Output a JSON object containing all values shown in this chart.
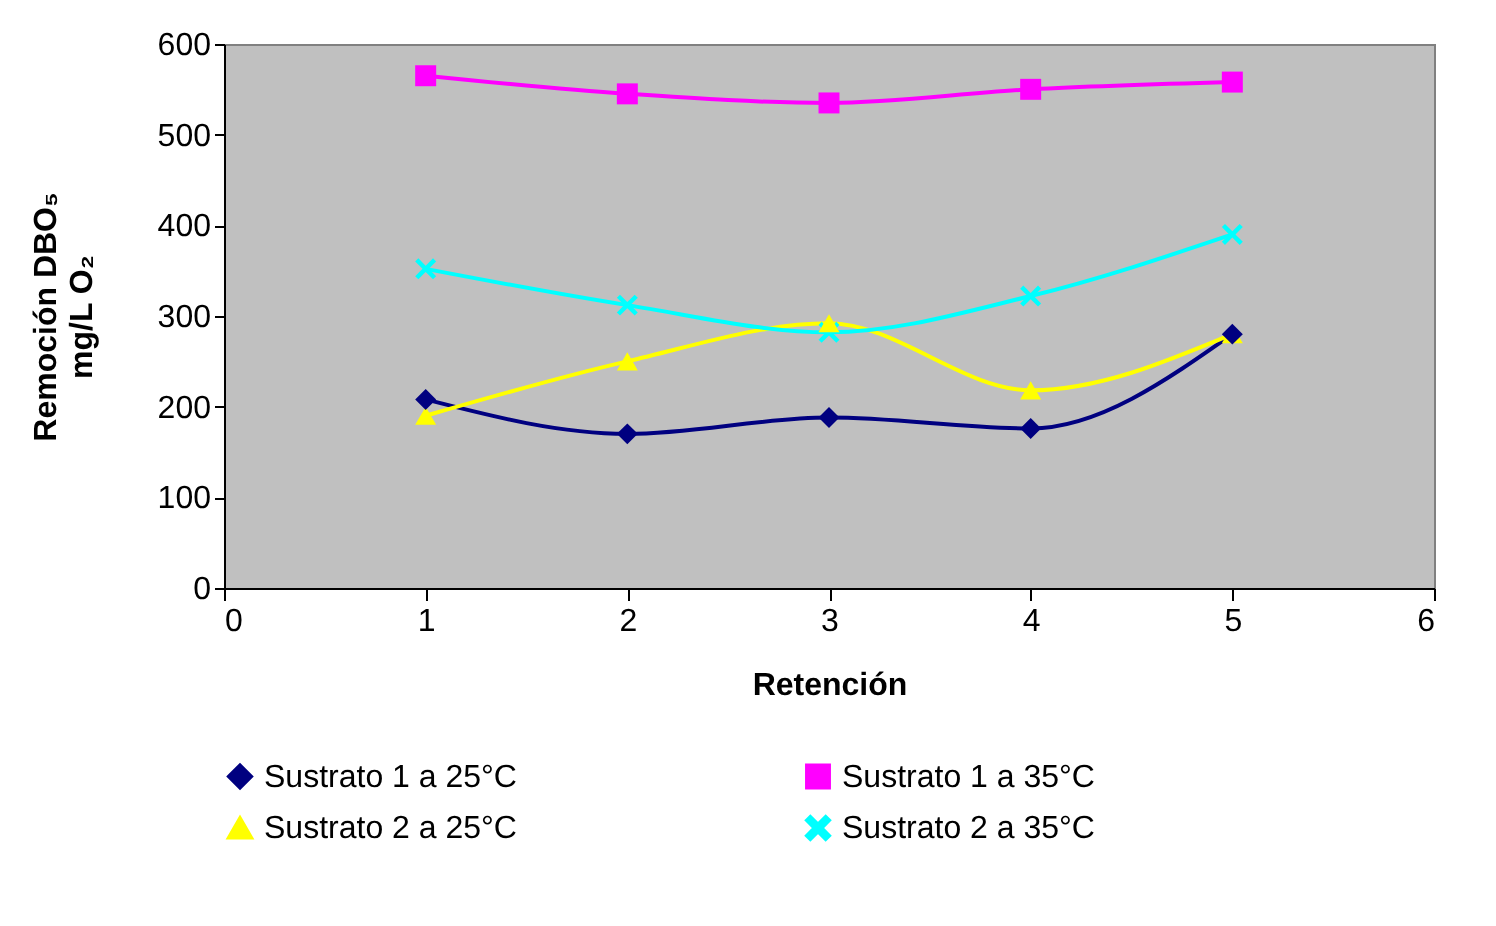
{
  "chart_data": {
    "type": "line",
    "xlabel": "Retención",
    "ylabel": "Remoción DBO₅\nmg/L O₂",
    "x": [
      1,
      2,
      3,
      4,
      5
    ],
    "xlim": [
      0,
      6
    ],
    "xticks": [
      0,
      1,
      2,
      3,
      4,
      5,
      6
    ],
    "ylim": [
      0,
      600
    ],
    "yticks": [
      0,
      100,
      200,
      300,
      400,
      500,
      600
    ],
    "grid": false,
    "legend": "bottom",
    "series": [
      {
        "name": "Sustrato 1 a 25°C",
        "color": "#000080",
        "marker": "diamond",
        "values": [
          208,
          170,
          188,
          176,
          280
        ]
      },
      {
        "name": "Sustrato 1 a 35°C",
        "color": "#ff00ff",
        "marker": "square",
        "values": [
          565,
          545,
          535,
          550,
          558
        ]
      },
      {
        "name": "Sustrato 2 a 25°C",
        "color": "#ffff00",
        "marker": "triangle",
        "values": [
          190,
          250,
          292,
          218,
          280
        ]
      },
      {
        "name": "Sustrato 2 a 35°C",
        "color": "#00ffff",
        "marker": "cross",
        "values": [
          352,
          312,
          282,
          322,
          390
        ]
      }
    ]
  }
}
